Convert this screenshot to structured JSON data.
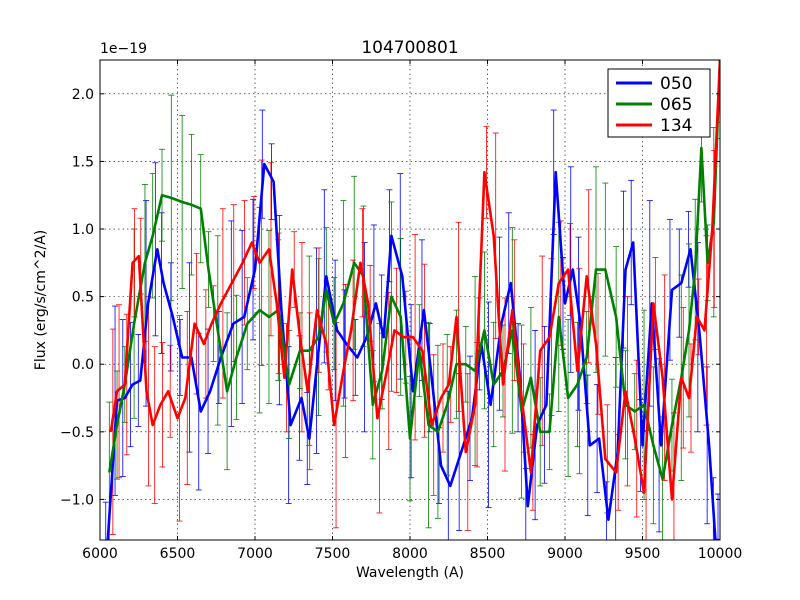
{
  "chart_data": {
    "type": "line",
    "title": "104700801",
    "xlabel": "Wavelength (A)",
    "ylabel": "Flux (erg/s/cm^2/A)",
    "y_multiplier": "1e−19",
    "xlim": [
      6000,
      10000
    ],
    "ylim": [
      -1.3,
      2.25
    ],
    "xticks": [
      6000,
      6500,
      7000,
      7500,
      8000,
      8500,
      9000,
      9500,
      10000
    ],
    "xtick_labels": [
      "6000",
      "6500",
      "7000",
      "7500",
      "8000",
      "8500",
      "9000",
      "9500",
      "10000"
    ],
    "yticks": [
      -1.0,
      -0.5,
      0.0,
      0.5,
      1.0,
      1.5,
      2.0
    ],
    "ytick_labels": [
      "−1.0",
      "−0.5",
      "0.0",
      "0.5",
      "1.0",
      "1.5",
      "2.0"
    ],
    "grid": true,
    "legend_position": "top-right",
    "series": [
      {
        "name": "050",
        "color": "#0000ff",
        "x": [
          6050,
          6110,
          6160,
          6210,
          6260,
          6310,
          6370,
          6410,
          6470,
          6530,
          6590,
          6650,
          6710,
          6780,
          6860,
          6930,
          7000,
          7060,
          7120,
          7170,
          7230,
          7300,
          7350,
          7410,
          7460,
          7530,
          7590,
          7660,
          7720,
          7780,
          7830,
          7880,
          7950,
          8020,
          8090,
          8140,
          8200,
          8260,
          8330,
          8400,
          8460,
          8520,
          8590,
          8650,
          8710,
          8760,
          8820,
          8880,
          8940,
          9000,
          9050,
          9100,
          9160,
          9220,
          9280,
          9340,
          9390,
          9440,
          9500,
          9560,
          9620,
          9690,
          9750,
          9810,
          9870,
          9930,
          9970,
          10000
        ],
        "y": [
          -1.3,
          -0.27,
          -0.25,
          -0.15,
          -0.12,
          0.45,
          0.85,
          0.6,
          0.35,
          0.05,
          0.05,
          -0.35,
          -0.2,
          0.05,
          0.3,
          0.35,
          0.7,
          1.48,
          1.35,
          0.4,
          -0.45,
          -0.25,
          -0.55,
          0.1,
          0.65,
          0.25,
          0.15,
          0.05,
          0.2,
          0.45,
          0.2,
          0.95,
          0.65,
          -0.2,
          0.4,
          -0.1,
          -0.75,
          -0.9,
          -0.65,
          -0.4,
          0.15,
          -0.3,
          0.3,
          0.6,
          -0.1,
          -1.05,
          -0.45,
          -0.3,
          1.42,
          0.45,
          0.7,
          0.3,
          -0.6,
          -0.55,
          -1.15,
          -0.65,
          0.7,
          0.9,
          -0.6,
          0.45,
          -0.6,
          0.55,
          0.6,
          0.85,
          0.2,
          -0.6,
          -1.3,
          -1.3
        ]
      },
      {
        "name": "065",
        "color": "#008000",
        "x": [
          6060,
          6110,
          6160,
          6220,
          6290,
          6340,
          6400,
          6460,
          6530,
          6590,
          6650,
          6700,
          6760,
          6820,
          6880,
          6950,
          7030,
          7090,
          7150,
          7220,
          7290,
          7350,
          7410,
          7460,
          7510,
          7570,
          7640,
          7700,
          7760,
          7820,
          7880,
          7940,
          8000,
          8060,
          8120,
          8180,
          8240,
          8300,
          8360,
          8420,
          8480,
          8540,
          8600,
          8660,
          8720,
          8780,
          8840,
          8900,
          8960,
          9020,
          9080,
          9140,
          9200,
          9260,
          9330,
          9390,
          9450,
          9510,
          9570,
          9630,
          9690,
          9750,
          9800,
          9840,
          9880,
          9920,
          9960,
          10000
        ],
        "y": [
          -0.8,
          -0.45,
          -0.15,
          0.3,
          0.75,
          0.95,
          1.25,
          1.23,
          1.2,
          1.18,
          1.15,
          0.7,
          0.25,
          -0.2,
          0.05,
          0.3,
          0.4,
          0.35,
          0.4,
          -0.15,
          0.1,
          0.1,
          0.2,
          0.55,
          0.3,
          0.45,
          0.75,
          0.65,
          -0.3,
          -0.05,
          0.5,
          0.35,
          -0.55,
          0.1,
          -0.45,
          -0.5,
          -0.3,
          0.0,
          0.0,
          -0.05,
          0.25,
          -0.15,
          -0.05,
          0.25,
          -0.35,
          -0.1,
          -0.5,
          -0.5,
          0.35,
          -0.25,
          -0.15,
          0.05,
          0.7,
          0.7,
          0.35,
          -0.3,
          -0.35,
          -0.3,
          -0.6,
          -0.85,
          -0.45,
          -0.1,
          0.25,
          0.7,
          1.6,
          0.75,
          1.05,
          2.25
        ]
      },
      {
        "name": "134",
        "color": "#ff0000",
        "x": [
          6070,
          6110,
          6160,
          6210,
          6250,
          6300,
          6340,
          6390,
          6440,
          6500,
          6550,
          6610,
          6670,
          6720,
          6780,
          6850,
          6920,
          6980,
          7030,
          7090,
          7140,
          7190,
          7240,
          7290,
          7340,
          7400,
          7460,
          7510,
          7570,
          7620,
          7680,
          7730,
          7790,
          7850,
          7900,
          7960,
          8020,
          8080,
          8140,
          8200,
          8250,
          8300,
          8360,
          8420,
          8480,
          8540,
          8600,
          8660,
          8720,
          8780,
          8840,
          8900,
          8960,
          9020,
          9080,
          9140,
          9200,
          9260,
          9330,
          9390,
          9450,
          9510,
          9570,
          9630,
          9690,
          9750,
          9800,
          9850,
          9900,
          9950,
          10000
        ],
        "y": [
          -0.5,
          -0.2,
          -0.15,
          0.75,
          0.8,
          -0.2,
          -0.45,
          -0.3,
          -0.2,
          -0.4,
          -0.25,
          0.3,
          0.15,
          0.3,
          0.45,
          0.6,
          0.75,
          0.9,
          0.75,
          0.85,
          0.45,
          -0.1,
          0.7,
          0.2,
          -0.2,
          0.4,
          0.15,
          -0.45,
          -0.05,
          0.25,
          0.75,
          0.45,
          -0.4,
          -0.05,
          0.25,
          0.2,
          0.2,
          0.1,
          -0.45,
          -0.25,
          -0.15,
          0.35,
          -0.65,
          -0.3,
          1.42,
          0.95,
          -0.15,
          0.4,
          -0.25,
          -0.8,
          0.1,
          0.2,
          0.6,
          0.7,
          -0.05,
          0.65,
          0.15,
          -0.7,
          -0.8,
          -0.2,
          -0.55,
          -0.95,
          0.45,
          -0.1,
          -1.0,
          -0.1,
          -0.25,
          0.35,
          0.25,
          1.0,
          2.25
        ]
      }
    ]
  }
}
